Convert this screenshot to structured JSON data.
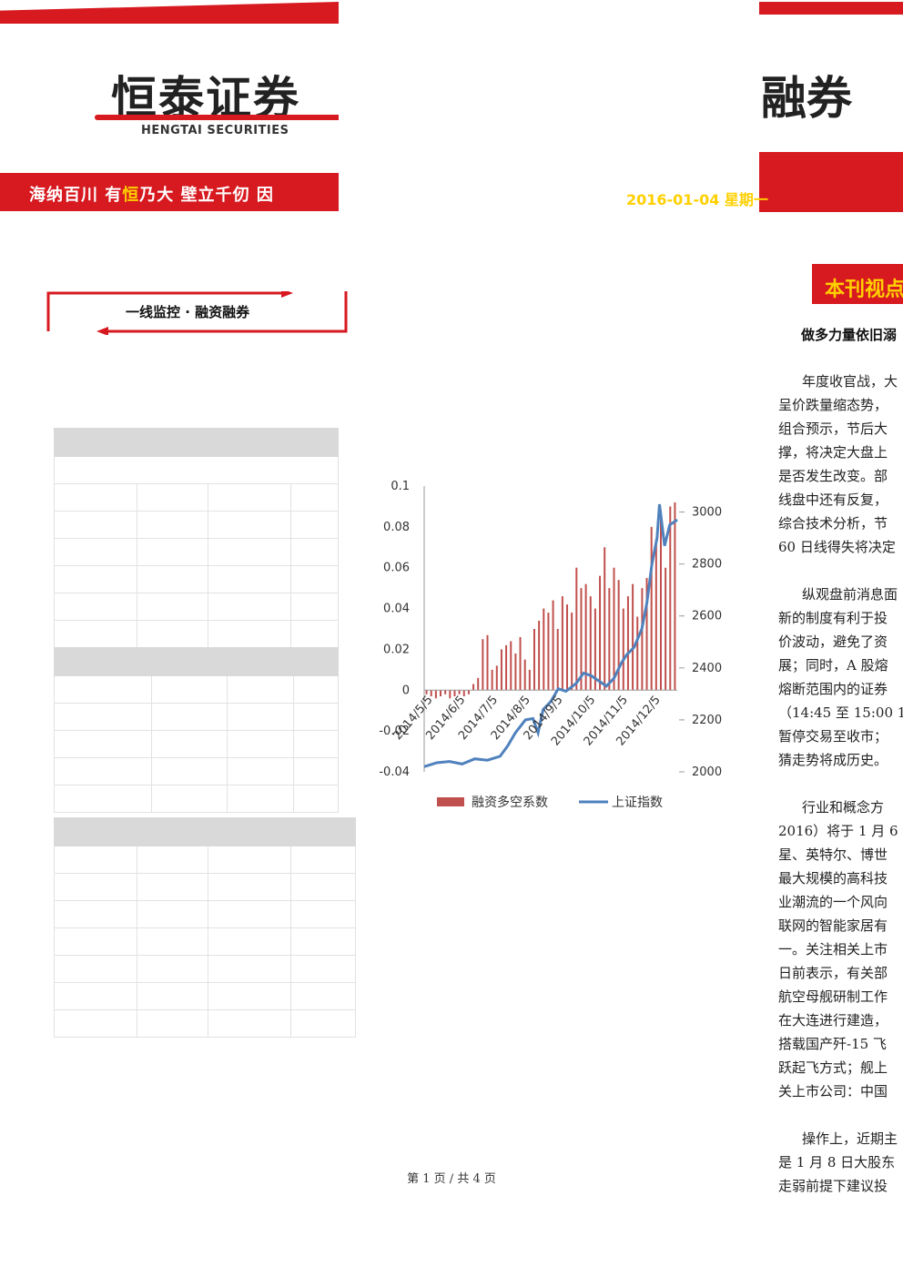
{
  "header": {
    "logo_cn": "恒泰证券",
    "logo_en": "HENGTAI SECURITIES",
    "slogan_a": "海纳百川 有",
    "slogan_hl": "恒",
    "slogan_b": "乃大  壁立千仞 因",
    "logo_fragment": "融券",
    "date": "2016-01-04 星期一"
  },
  "section": {
    "label": "一线监控 · 融资融券"
  },
  "chart_data": {
    "type": "bar+line",
    "x_labels": [
      "2014/5/5",
      "2014/6/5",
      "2014/7/5",
      "2014/8/5",
      "2014/9/5",
      "2014/10/5",
      "2014/11/5",
      "2014/12/5"
    ],
    "y_left": {
      "ticks": [
        "0.1",
        "0.08",
        "0.06",
        "0.04",
        "0.02",
        "0",
        "-0.02",
        "-0.04"
      ],
      "range": [
        -0.04,
        0.1
      ]
    },
    "y_right": {
      "ticks": [
        "3000",
        "2800",
        "2600",
        "2400",
        "2200",
        "2000"
      ],
      "range": [
        2000,
        3100
      ]
    },
    "series": [
      {
        "name": "融资多空系数",
        "type": "bar",
        "color": "#c0504d"
      },
      {
        "name": "上证指数",
        "type": "line",
        "color": "#4f81bd"
      }
    ],
    "index_points": [
      [
        0,
        2020
      ],
      [
        0.05,
        2035
      ],
      [
        0.1,
        2040
      ],
      [
        0.15,
        2030
      ],
      [
        0.2,
        2050
      ],
      [
        0.25,
        2045
      ],
      [
        0.3,
        2060
      ],
      [
        0.33,
        2100
      ],
      [
        0.36,
        2150
      ],
      [
        0.4,
        2200
      ],
      [
        0.43,
        2205
      ],
      [
        0.45,
        2150
      ],
      [
        0.47,
        2240
      ],
      [
        0.5,
        2270
      ],
      [
        0.53,
        2320
      ],
      [
        0.56,
        2310
      ],
      [
        0.6,
        2340
      ],
      [
        0.63,
        2380
      ],
      [
        0.66,
        2370
      ],
      [
        0.69,
        2350
      ],
      [
        0.72,
        2330
      ],
      [
        0.75,
        2360
      ],
      [
        0.78,
        2420
      ],
      [
        0.8,
        2450
      ],
      [
        0.83,
        2480
      ],
      [
        0.86,
        2550
      ],
      [
        0.88,
        2650
      ],
      [
        0.9,
        2800
      ],
      [
        0.92,
        2900
      ],
      [
        0.93,
        3030
      ],
      [
        0.95,
        2870
      ],
      [
        0.97,
        2950
      ],
      [
        1.0,
        2970
      ]
    ],
    "bar_values": [
      -0.002,
      -0.003,
      -0.004,
      -0.003,
      -0.002,
      -0.004,
      -0.003,
      -0.002,
      -0.003,
      -0.002,
      0.003,
      0.006,
      0.025,
      0.027,
      0.01,
      0.012,
      0.02,
      0.022,
      0.024,
      0.018,
      0.026,
      0.015,
      0.01,
      0.03,
      0.034,
      0.04,
      0.038,
      0.044,
      0.03,
      0.046,
      0.042,
      0.038,
      0.06,
      0.05,
      0.052,
      0.046,
      0.04,
      0.056,
      0.07,
      0.05,
      0.06,
      0.054,
      0.04,
      0.046,
      0.052,
      0.036,
      0.05,
      0.055,
      0.08,
      0.074,
      0.088,
      0.06,
      0.09,
      0.092
    ]
  },
  "right": {
    "badge": "本刊视点",
    "title": "做多力量依旧溺",
    "paras": [
      [
        "年度收官战，大",
        "呈价跌量缩态势，",
        "组合预示，节后大",
        "撑，将决定大盘上",
        "是否发生改变。部",
        "线盘中还有反复，",
        "综合技术分析，节",
        "60 日线得失将决定"
      ],
      [
        "纵观盘前消息面",
        "新的制度有利于投",
        "价波动，避免了资",
        "展；同时，A 股熔",
        "熔断范围内的证券",
        "（14:45 至 15:00 1",
        "暂停交易至收市；",
        "猜走势将成历史。"
      ],
      [
        "行业和概念方",
        "2016）将于 1 月 6",
        "星、英特尔、博世",
        "最大规模的高科技",
        "业潮流的一个风向",
        "联网的智能家居有",
        "一。关注相关上市",
        "日前表示，有关部",
        "航空母舰研制工作",
        "在大连进行建造，",
        "搭载国产歼-15 飞",
        "跃起飞方式；舰上",
        "关上市公司：中国"
      ],
      [
        "操作上，近期主",
        "是 1 月 8 日大股东",
        "走弱前提下建议投"
      ]
    ]
  },
  "footer": "第 1 页 / 共 4 页"
}
